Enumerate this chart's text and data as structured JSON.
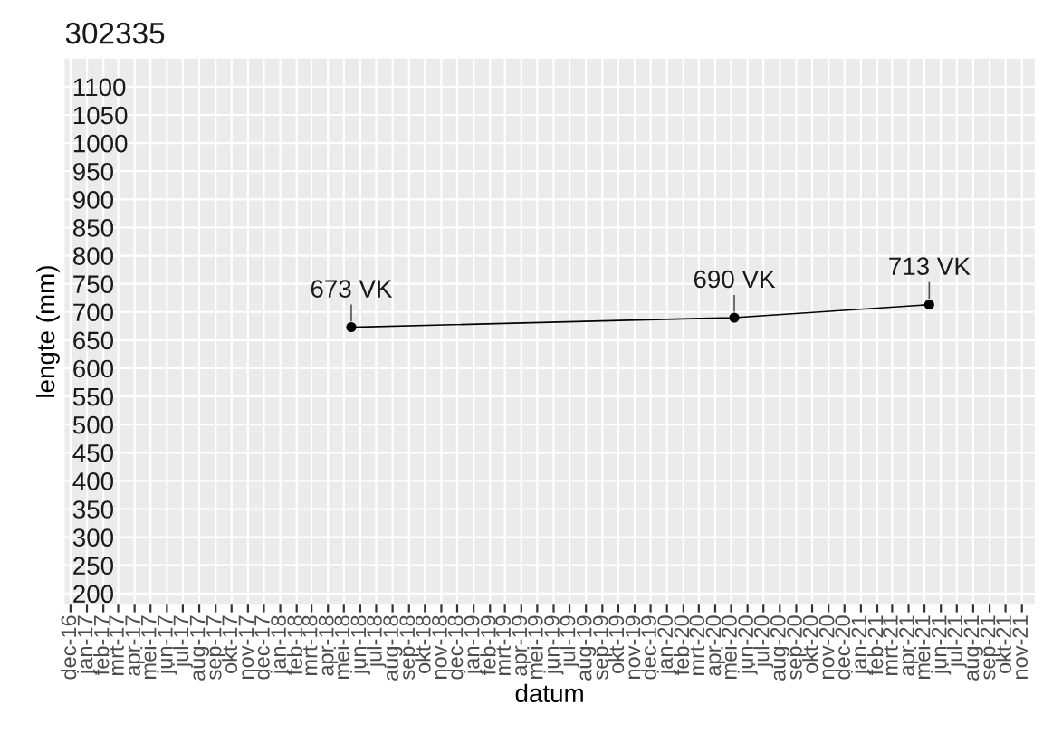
{
  "chart_data": {
    "type": "line",
    "title": "302335",
    "xlabel": "datum",
    "ylabel": "lengte (mm)",
    "x": [
      "2018-05-15",
      "2020-05-07",
      "2021-05-10"
    ],
    "series": [
      {
        "color": "#000000",
        "values": [
          673,
          690,
          713
        ],
        "value_labels": [
          "673 VK",
          "690 VK",
          "713 VK"
        ]
      }
    ],
    "marker": "circle",
    "line_style": "solid",
    "grid": true,
    "ylim": [
      180,
      1150
    ],
    "yticks": [
      200,
      250,
      300,
      350,
      400,
      450,
      500,
      550,
      600,
      650,
      700,
      750,
      800,
      850,
      900,
      950,
      1000,
      1050,
      1100
    ],
    "xlim": [
      "2016-11-20",
      "2021-11-25"
    ],
    "xticks": [
      {
        "value": "2016-12-01",
        "label": "dec-16"
      },
      {
        "value": "2017-01-01",
        "label": "jan-17"
      },
      {
        "value": "2017-02-01",
        "label": "feb-17"
      },
      {
        "value": "2017-03-01",
        "label": "mrt-17"
      },
      {
        "value": "2017-04-01",
        "label": "apr-17"
      },
      {
        "value": "2017-05-01",
        "label": "mei-17"
      },
      {
        "value": "2017-06-01",
        "label": "jun-17"
      },
      {
        "value": "2017-07-01",
        "label": "jul-17"
      },
      {
        "value": "2017-08-01",
        "label": "aug-17"
      },
      {
        "value": "2017-09-01",
        "label": "sep-17"
      },
      {
        "value": "2017-10-01",
        "label": "okt-17"
      },
      {
        "value": "2017-11-01",
        "label": "nov-17"
      },
      {
        "value": "2017-12-01",
        "label": "dec-17"
      },
      {
        "value": "2018-01-01",
        "label": "jan-18"
      },
      {
        "value": "2018-02-01",
        "label": "feb-18"
      },
      {
        "value": "2018-03-01",
        "label": "mrt-18"
      },
      {
        "value": "2018-04-01",
        "label": "apr-18"
      },
      {
        "value": "2018-05-01",
        "label": "mei-18"
      },
      {
        "value": "2018-06-01",
        "label": "jun-18"
      },
      {
        "value": "2018-07-01",
        "label": "jul-18"
      },
      {
        "value": "2018-08-01",
        "label": "aug-18"
      },
      {
        "value": "2018-09-01",
        "label": "sep-18"
      },
      {
        "value": "2018-10-01",
        "label": "okt-18"
      },
      {
        "value": "2018-11-01",
        "label": "nov-18"
      },
      {
        "value": "2018-12-01",
        "label": "dec-18"
      },
      {
        "value": "2019-01-01",
        "label": "jan-19"
      },
      {
        "value": "2019-02-01",
        "label": "feb-19"
      },
      {
        "value": "2019-03-01",
        "label": "mrt-19"
      },
      {
        "value": "2019-04-01",
        "label": "apr-19"
      },
      {
        "value": "2019-05-01",
        "label": "mei-19"
      },
      {
        "value": "2019-06-01",
        "label": "jun-19"
      },
      {
        "value": "2019-07-01",
        "label": "jul-19"
      },
      {
        "value": "2019-08-01",
        "label": "aug-19"
      },
      {
        "value": "2019-09-01",
        "label": "sep-19"
      },
      {
        "value": "2019-10-01",
        "label": "okt-19"
      },
      {
        "value": "2019-11-01",
        "label": "nov-19"
      },
      {
        "value": "2019-12-01",
        "label": "dec-19"
      },
      {
        "value": "2020-01-01",
        "label": "jan-20"
      },
      {
        "value": "2020-02-01",
        "label": "feb-20"
      },
      {
        "value": "2020-03-01",
        "label": "mrt-20"
      },
      {
        "value": "2020-04-01",
        "label": "apr-20"
      },
      {
        "value": "2020-05-01",
        "label": "mei-20"
      },
      {
        "value": "2020-06-01",
        "label": "jun-20"
      },
      {
        "value": "2020-07-01",
        "label": "jul-20"
      },
      {
        "value": "2020-08-01",
        "label": "aug-20"
      },
      {
        "value": "2020-09-01",
        "label": "sep-20"
      },
      {
        "value": "2020-10-01",
        "label": "okt-20"
      },
      {
        "value": "2020-11-01",
        "label": "nov-20"
      },
      {
        "value": "2020-12-01",
        "label": "dec-20"
      },
      {
        "value": "2021-01-01",
        "label": "jan-21"
      },
      {
        "value": "2021-02-01",
        "label": "feb-21"
      },
      {
        "value": "2021-03-01",
        "label": "mrt-21"
      },
      {
        "value": "2021-04-01",
        "label": "apr-21"
      },
      {
        "value": "2021-05-01",
        "label": "mei-21"
      },
      {
        "value": "2021-06-01",
        "label": "jun-21"
      },
      {
        "value": "2021-07-01",
        "label": "jul-21"
      },
      {
        "value": "2021-08-01",
        "label": "aug-21"
      },
      {
        "value": "2021-09-01",
        "label": "sep-21"
      },
      {
        "value": "2021-10-01",
        "label": "okt-21"
      },
      {
        "value": "2021-11-01",
        "label": "nov-21"
      }
    ]
  }
}
